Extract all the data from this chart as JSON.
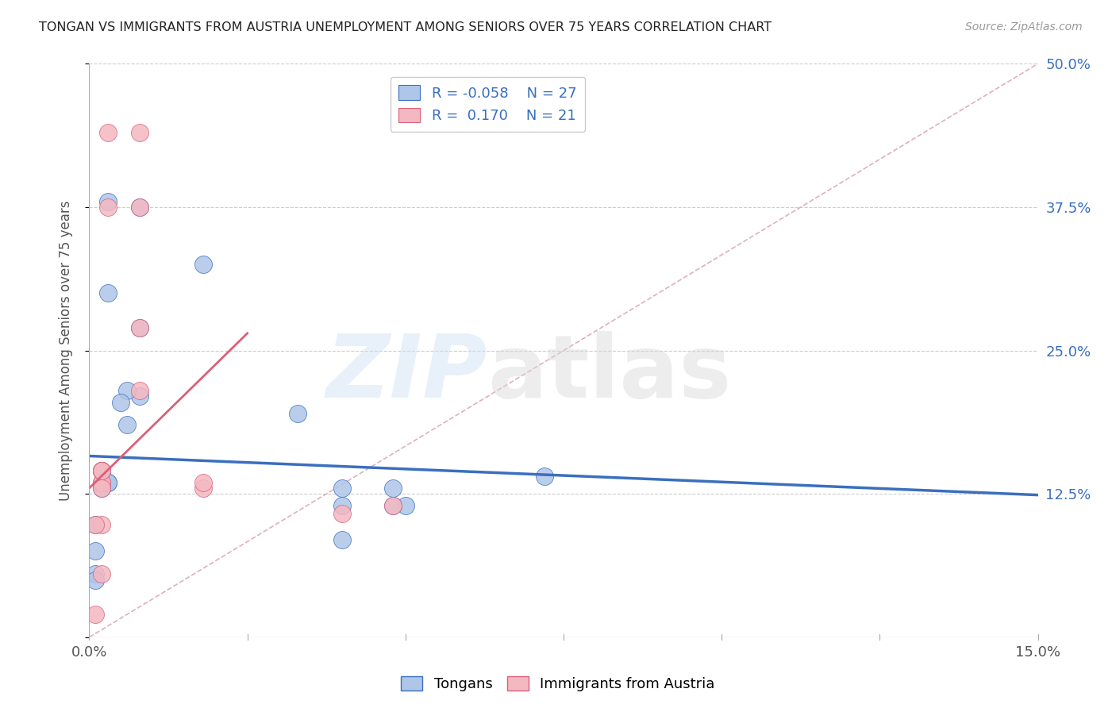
{
  "title": "TONGAN VS IMMIGRANTS FROM AUSTRIA UNEMPLOYMENT AMONG SENIORS OVER 75 YEARS CORRELATION CHART",
  "source": "Source: ZipAtlas.com",
  "ylabel": "Unemployment Among Seniors over 75 years",
  "xmin": 0.0,
  "xmax": 0.15,
  "ymin": 0.0,
  "ymax": 0.5,
  "xticks": [
    0.0,
    0.025,
    0.05,
    0.075,
    0.1,
    0.125,
    0.15
  ],
  "yticks": [
    0.0,
    0.125,
    0.25,
    0.375,
    0.5
  ],
  "legend_labels": [
    "Tongans",
    "Immigrants from Austria"
  ],
  "R_tongan": -0.058,
  "N_tongan": 27,
  "R_austria": 0.17,
  "N_austria": 21,
  "color_tongan": "#aec6e8",
  "color_austria": "#f4b8c1",
  "line_color_tongan": "#3a6fbf",
  "line_color_austria": "#d9607a",
  "line_color_diagonal": "#e0b0bb",
  "tongan_x": [
    0.003,
    0.008,
    0.003,
    0.008,
    0.018,
    0.008,
    0.006,
    0.006,
    0.005,
    0.002,
    0.002,
    0.002,
    0.003,
    0.003,
    0.002,
    0.033,
    0.04,
    0.04,
    0.05,
    0.048,
    0.048,
    0.04,
    0.072,
    0.001,
    0.001,
    0.001,
    0.001
  ],
  "tongan_y": [
    0.38,
    0.375,
    0.3,
    0.27,
    0.325,
    0.21,
    0.215,
    0.185,
    0.205,
    0.145,
    0.145,
    0.135,
    0.135,
    0.135,
    0.13,
    0.195,
    0.13,
    0.115,
    0.115,
    0.115,
    0.13,
    0.085,
    0.14,
    0.098,
    0.075,
    0.055,
    0.05
  ],
  "austria_x": [
    0.003,
    0.008,
    0.003,
    0.008,
    0.008,
    0.008,
    0.002,
    0.002,
    0.002,
    0.002,
    0.002,
    0.002,
    0.002,
    0.002,
    0.002,
    0.04,
    0.048,
    0.018,
    0.018,
    0.001,
    0.001
  ],
  "austria_y": [
    0.44,
    0.44,
    0.375,
    0.375,
    0.27,
    0.215,
    0.145,
    0.145,
    0.135,
    0.135,
    0.145,
    0.145,
    0.13,
    0.098,
    0.055,
    0.108,
    0.115,
    0.13,
    0.135,
    0.098,
    0.02
  ],
  "blue_line_y0": 0.158,
  "blue_line_y1": 0.124,
  "pink_line_x0": 0.0,
  "pink_line_x1": 0.025,
  "pink_line_y0": 0.13,
  "pink_line_y1": 0.265
}
